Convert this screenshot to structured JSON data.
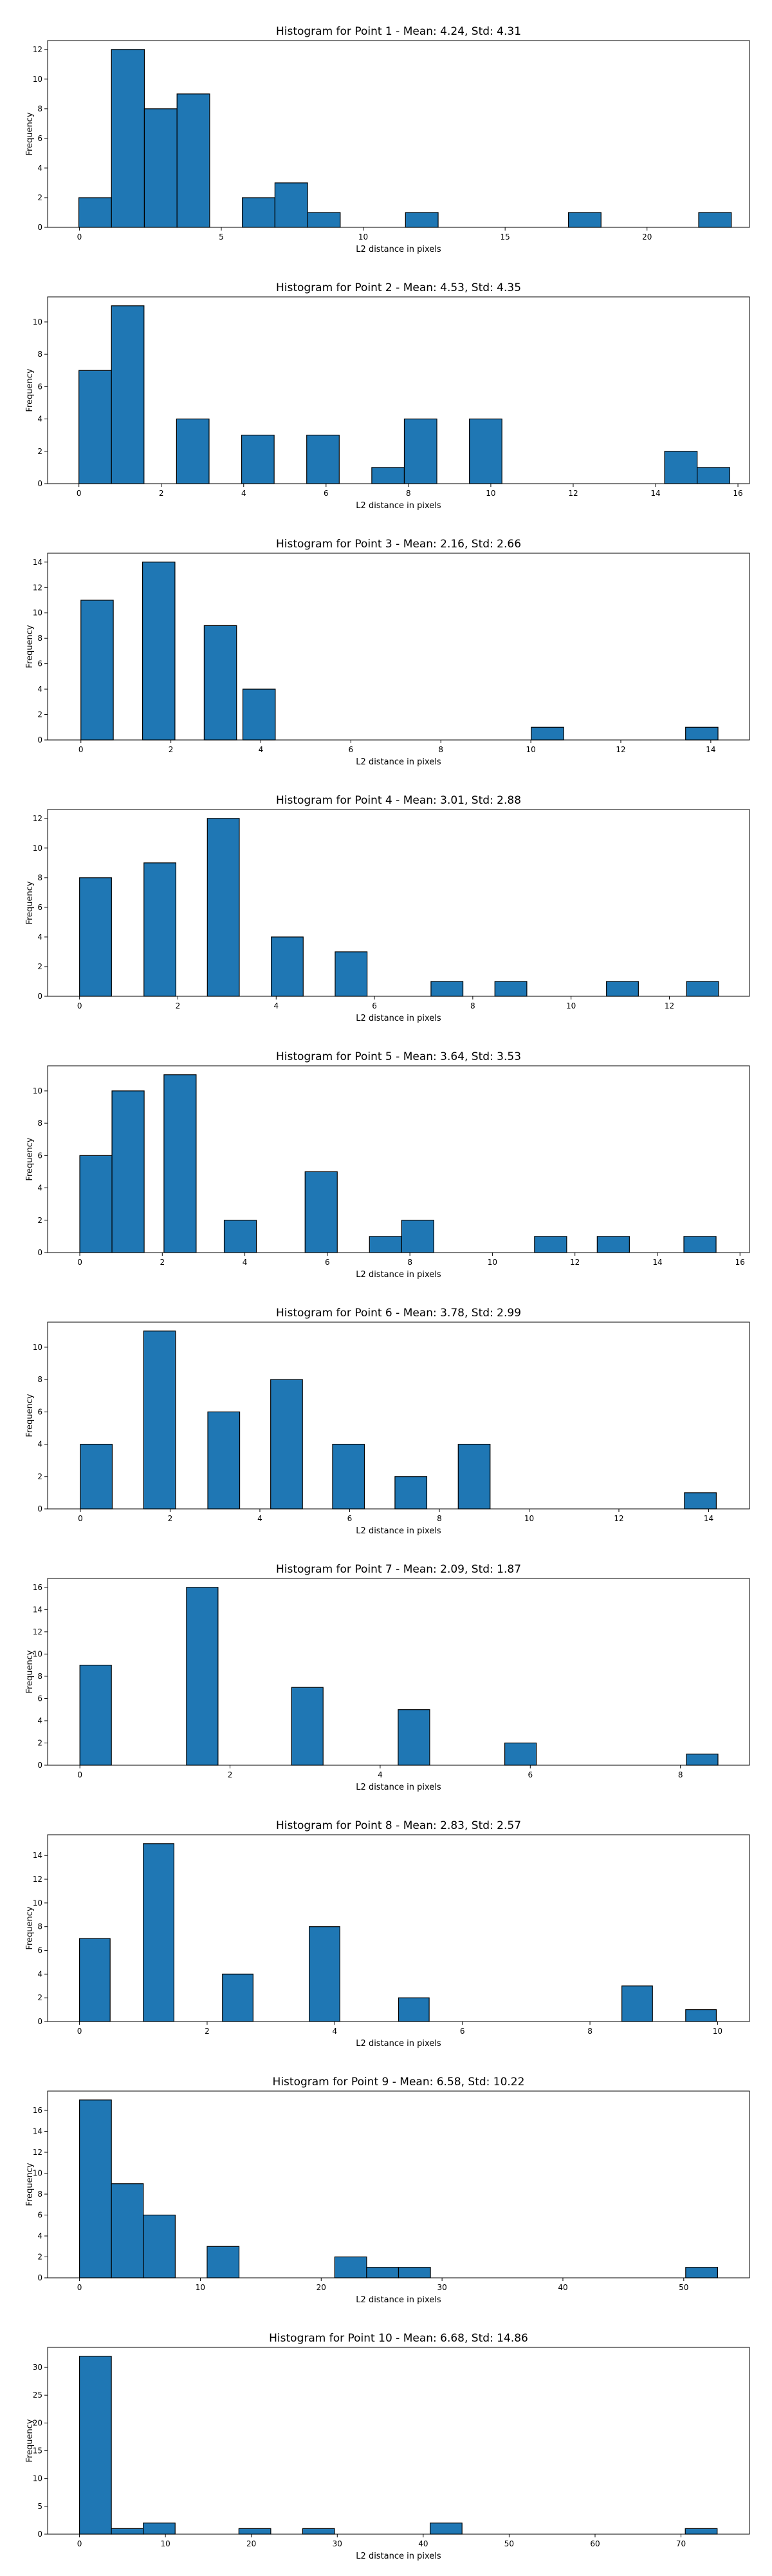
{
  "chart_data": [
    {
      "type": "bar",
      "title": "Histogram for Point 1 - Mean: 4.24, Std: 4.31",
      "xlabel": "L2 distance in pixels",
      "ylabel": "Frequency",
      "x_ticks": [
        0,
        5,
        10,
        15,
        20
      ],
      "y_ticks": [
        0,
        2,
        4,
        6,
        8,
        10,
        12
      ],
      "xlim": [
        -1.12,
        23.61
      ],
      "ylim": [
        0,
        12.6
      ],
      "grid": false,
      "bins": [
        [
          -0.02,
          1.13,
          2
        ],
        [
          1.13,
          2.29,
          12
        ],
        [
          2.29,
          3.44,
          8
        ],
        [
          3.44,
          4.59,
          9
        ],
        [
          5.74,
          6.89,
          2
        ],
        [
          6.89,
          8.04,
          3
        ],
        [
          8.04,
          9.19,
          1
        ],
        [
          11.49,
          12.64,
          1
        ],
        [
          17.23,
          18.38,
          1
        ],
        [
          21.82,
          22.97,
          1
        ]
      ]
    },
    {
      "type": "bar",
      "title": "Histogram for Point 2 - Mean: 4.53, Std: 4.35",
      "xlabel": "L2 distance in pixels",
      "ylabel": "Frequency",
      "x_ticks": [
        0,
        2,
        4,
        6,
        8,
        10,
        12,
        14,
        16
      ],
      "y_ticks": [
        0,
        2,
        4,
        6,
        8,
        10
      ],
      "xlim": [
        -0.76,
        16.28
      ],
      "ylim": [
        0,
        11.55
      ],
      "grid": false,
      "bins": [
        [
          0.0,
          0.79,
          7
        ],
        [
          0.79,
          1.58,
          11
        ],
        [
          2.37,
          3.16,
          4
        ],
        [
          3.95,
          4.74,
          3
        ],
        [
          5.53,
          6.32,
          3
        ],
        [
          7.11,
          7.9,
          1
        ],
        [
          7.9,
          8.69,
          4
        ],
        [
          9.48,
          10.27,
          4
        ],
        [
          14.22,
          15.01,
          2
        ],
        [
          15.01,
          15.8,
          1
        ]
      ]
    },
    {
      "type": "bar",
      "title": "Histogram for Point 3 - Mean: 2.16, Std: 2.66",
      "xlabel": "L2 distance in pixels",
      "ylabel": "Frequency",
      "x_ticks": [
        0,
        2,
        4,
        6,
        8,
        10,
        12,
        14
      ],
      "y_ticks": [
        0,
        2,
        4,
        6,
        8,
        10,
        12,
        14
      ],
      "xlim": [
        -0.74,
        14.86
      ],
      "ylim": [
        0,
        14.7
      ],
      "grid": false,
      "bins": [
        [
          0.0,
          0.72,
          11
        ],
        [
          1.37,
          2.09,
          14
        ],
        [
          2.74,
          3.46,
          9
        ],
        [
          3.6,
          4.32,
          4
        ],
        [
          10.01,
          10.73,
          1
        ],
        [
          13.44,
          14.16,
          1
        ]
      ]
    },
    {
      "type": "bar",
      "title": "Histogram for Point 4 - Mean: 3.01, Std: 2.88",
      "xlabel": "L2 distance in pixels",
      "ylabel": "Frequency",
      "x_ticks": [
        0,
        2,
        4,
        6,
        8,
        10,
        12
      ],
      "y_ticks": [
        0,
        2,
        4,
        6,
        8,
        10,
        12
      ],
      "xlim": [
        -0.65,
        13.63
      ],
      "ylim": [
        0,
        12.6
      ],
      "grid": false,
      "bins": [
        [
          0.0,
          0.65,
          8
        ],
        [
          1.31,
          1.96,
          9
        ],
        [
          2.6,
          3.25,
          12
        ],
        [
          3.9,
          4.55,
          4
        ],
        [
          5.2,
          5.85,
          3
        ],
        [
          7.15,
          7.8,
          1
        ],
        [
          8.45,
          9.1,
          1
        ],
        [
          10.72,
          11.37,
          1
        ],
        [
          12.35,
          13.0,
          1
        ]
      ]
    },
    {
      "type": "bar",
      "title": "Histogram for Point 5 - Mean: 3.64, Std: 3.53",
      "xlabel": "L2 distance in pixels",
      "ylabel": "Frequency",
      "x_ticks": [
        0,
        2,
        4,
        6,
        8,
        10,
        12,
        14,
        16
      ],
      "y_ticks": [
        0,
        2,
        4,
        6,
        8,
        10
      ],
      "xlim": [
        -0.78,
        16.23
      ],
      "ylim": [
        0,
        11.55
      ],
      "grid": false,
      "bins": [
        [
          0.0,
          0.78,
          6
        ],
        [
          0.78,
          1.56,
          10
        ],
        [
          2.04,
          2.82,
          11
        ],
        [
          3.5,
          4.28,
          2
        ],
        [
          5.46,
          6.24,
          5
        ],
        [
          7.02,
          7.8,
          1
        ],
        [
          7.8,
          8.58,
          2
        ],
        [
          11.02,
          11.8,
          1
        ],
        [
          12.54,
          13.32,
          1
        ],
        [
          14.64,
          15.42,
          1
        ]
      ]
    },
    {
      "type": "bar",
      "title": "Histogram for Point 6 - Mean: 3.78, Std: 2.99",
      "xlabel": "L2 distance in pixels",
      "ylabel": "Frequency",
      "x_ticks": [
        0,
        2,
        4,
        6,
        8,
        10,
        12,
        14
      ],
      "y_ticks": [
        0,
        2,
        4,
        6,
        8,
        10
      ],
      "xlim": [
        -0.73,
        14.91
      ],
      "ylim": [
        0,
        11.55
      ],
      "grid": false,
      "bins": [
        [
          0.0,
          0.71,
          4
        ],
        [
          1.41,
          2.12,
          11
        ],
        [
          2.84,
          3.55,
          6
        ],
        [
          4.24,
          4.95,
          8
        ],
        [
          5.62,
          6.33,
          4
        ],
        [
          7.01,
          7.72,
          2
        ],
        [
          8.42,
          9.13,
          4
        ],
        [
          13.46,
          14.17,
          1
        ]
      ]
    },
    {
      "type": "bar",
      "title": "Histogram for Point 7 - Mean: 2.09, Std: 1.87",
      "xlabel": "L2 distance in pixels",
      "ylabel": "Frequency",
      "x_ticks": [
        0,
        2,
        4,
        6,
        8
      ],
      "y_ticks": [
        0,
        2,
        4,
        6,
        8,
        10,
        12,
        14,
        16
      ],
      "xlim": [
        -0.43,
        8.92
      ],
      "ylim": [
        0,
        16.8
      ],
      "grid": false,
      "bins": [
        [
          0.0,
          0.42,
          9
        ],
        [
          1.42,
          1.84,
          16
        ],
        [
          2.82,
          3.24,
          7
        ],
        [
          4.24,
          4.66,
          5
        ],
        [
          5.66,
          6.08,
          2
        ],
        [
          8.08,
          8.5,
          1
        ]
      ]
    },
    {
      "type": "bar",
      "title": "Histogram for Point 8 - Mean: 2.83, Std: 2.57",
      "xlabel": "L2 distance in pixels",
      "ylabel": "Frequency",
      "x_ticks": [
        0,
        2,
        4,
        6,
        8,
        10
      ],
      "y_ticks": [
        0,
        2,
        4,
        6,
        8,
        10,
        12,
        14
      ],
      "xlim": [
        -0.5,
        10.5
      ],
      "ylim": [
        0,
        15.75
      ],
      "grid": false,
      "bins": [
        [
          0.0,
          0.48,
          7
        ],
        [
          1.0,
          1.48,
          15
        ],
        [
          2.24,
          2.72,
          4
        ],
        [
          3.6,
          4.08,
          8
        ],
        [
          5.0,
          5.48,
          2
        ],
        [
          8.5,
          8.98,
          3
        ],
        [
          9.5,
          9.98,
          1
        ]
      ]
    },
    {
      "type": "bar",
      "title": "Histogram for Point 9 - Mean: 6.58, Std: 10.22",
      "xlabel": "L2 distance in pixels",
      "ylabel": "Frequency",
      "x_ticks": [
        0,
        10,
        20,
        30,
        40,
        50
      ],
      "y_ticks": [
        0,
        2,
        4,
        6,
        8,
        10,
        12,
        14,
        16
      ],
      "xlim": [
        -2.64,
        55.44
      ],
      "ylim": [
        0,
        17.85
      ],
      "grid": false,
      "bins": [
        [
          0.0,
          2.64,
          17
        ],
        [
          2.64,
          5.28,
          9
        ],
        [
          5.28,
          7.92,
          6
        ],
        [
          10.56,
          13.2,
          3
        ],
        [
          21.12,
          23.76,
          2
        ],
        [
          23.76,
          26.4,
          1
        ],
        [
          26.4,
          29.04,
          1
        ],
        [
          50.16,
          52.8,
          1
        ]
      ]
    },
    {
      "type": "bar",
      "title": "Histogram for Point 10 - Mean: 6.68, Std: 14.86",
      "xlabel": "L2 distance in pixels",
      "ylabel": "Frequency",
      "x_ticks": [
        0,
        10,
        20,
        30,
        40,
        50,
        60,
        70
      ],
      "y_ticks": [
        0,
        5,
        10,
        15,
        20,
        25,
        30
      ],
      "xlim": [
        -3.71,
        77.97
      ],
      "ylim": [
        0,
        33.6
      ],
      "grid": false,
      "bins": [
        [
          0.0,
          3.71,
          32
        ],
        [
          3.71,
          7.42,
          1
        ],
        [
          7.42,
          11.13,
          2
        ],
        [
          18.55,
          22.26,
          1
        ],
        [
          25.97,
          29.68,
          1
        ],
        [
          40.81,
          44.52,
          2
        ],
        [
          70.5,
          74.21,
          1
        ]
      ]
    }
  ]
}
